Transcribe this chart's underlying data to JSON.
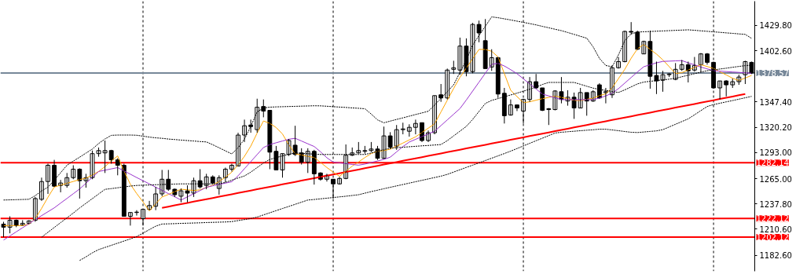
{
  "chart_data": {
    "type": "candlestick",
    "categories": [
      null,
      null,
      null,
      null,
      null,
      null,
      null,
      null,
      null,
      null,
      null,
      null,
      null,
      null,
      null,
      null,
      null,
      null,
      null,
      null,
      null,
      null,
      null,
      null,
      null,
      null,
      null,
      null,
      null,
      null,
      null,
      null,
      null,
      null,
      null,
      null,
      null,
      null,
      null,
      null,
      null,
      null,
      null,
      null,
      null,
      null,
      null,
      null,
      null,
      null,
      null,
      null,
      null,
      null,
      null,
      null,
      null,
      null,
      null,
      null,
      null,
      null,
      null,
      null,
      null,
      null,
      null,
      null,
      null,
      null,
      null,
      null,
      null,
      null,
      null,
      null,
      null,
      null,
      null,
      null,
      null,
      null,
      null,
      null,
      null,
      null,
      null,
      null,
      null,
      null,
      null,
      null,
      null,
      null,
      null,
      null,
      null,
      null,
      null,
      null,
      null,
      null,
      null,
      null,
      null,
      null,
      null,
      null,
      null,
      null,
      null,
      null,
      null,
      null,
      null,
      null,
      null,
      null,
      null
    ],
    "ohlc": [
      [
        1216.1,
        1218.6,
        1202.0,
        1212.8
      ],
      [
        1212.8,
        1224.5,
        1206.2,
        1220.3
      ],
      [
        1220.3,
        1221.1,
        1212.8,
        1214.5
      ],
      [
        1215.3,
        1220.3,
        1214.5,
        1217.0
      ],
      [
        1217.0,
        1220.3,
        1216.0,
        1219.5
      ],
      [
        1220.3,
        1245.3,
        1218.6,
        1243.6
      ],
      [
        1242.8,
        1266.1,
        1241.1,
        1261.9
      ],
      [
        1261.9,
        1281.1,
        1248.6,
        1279.4
      ],
      [
        1279.4,
        1285.2,
        1256.1,
        1256.9
      ],
      [
        1257.7,
        1263.6,
        1250.3,
        1260.3
      ],
      [
        1257.7,
        1271.1,
        1255.3,
        1266.1
      ],
      [
        1266.1,
        1279.4,
        1264.4,
        1275.2
      ],
      [
        1275.2,
        1276.1,
        1243.6,
        1262.8
      ],
      [
        1262.8,
        1270.2,
        1255.3,
        1266.1
      ],
      [
        1266.1,
        1295.2,
        1264.4,
        1291.9
      ],
      [
        1291.9,
        1298.5,
        1288.6,
        1295.2
      ],
      [
        1292.7,
        1306.0,
        1271.1,
        1295.2
      ],
      [
        1295.2,
        1296.0,
        1281.1,
        1285.2
      ],
      [
        1285.2,
        1286.9,
        1268.6,
        1279.4
      ],
      [
        1279.4,
        1281.1,
        1224.5,
        1224.5
      ],
      [
        1224.5,
        1228.6,
        1214.5,
        1228.6
      ],
      [
        1228.6,
        1231.1,
        1225.3,
        1229.0
      ],
      [
        1222.0,
        1232.0,
        1214.5,
        1232.0
      ],
      [
        1232.0,
        1241.1,
        1231.1,
        1236.1
      ],
      [
        1235.3,
        1256.1,
        1231.1,
        1248.6
      ],
      [
        1248.6,
        1274.4,
        1246.1,
        1264.4
      ],
      [
        1264.4,
        1274.4,
        1251.9,
        1253.6
      ],
      [
        1253.6,
        1254.4,
        1245.3,
        1247.8
      ],
      [
        1246.1,
        1254.4,
        1239.5,
        1251.9
      ],
      [
        1251.9,
        1257.8,
        1239.5,
        1249.4
      ],
      [
        1249.4,
        1266.1,
        1245.3,
        1262.8
      ],
      [
        1262.8,
        1275.2,
        1254.4,
        1256.1
      ],
      [
        1257.7,
        1270.2,
        1253.6,
        1266.9
      ],
      [
        1266.9,
        1268.6,
        1259.2,
        1260.3
      ],
      [
        1254.4,
        1268.6,
        1247.8,
        1266.1
      ],
      [
        1266.1,
        1276.9,
        1261.1,
        1275.2
      ],
      [
        1275.2,
        1281.1,
        1272.7,
        1279.4
      ],
      [
        1278.6,
        1314.4,
        1278.6,
        1311.9
      ],
      [
        1311.9,
        1328.5,
        1304.4,
        1321.9
      ],
      [
        1322.7,
        1328.5,
        1314.4,
        1321.0
      ],
      [
        1317.7,
        1351.0,
        1314.4,
        1341.8
      ],
      [
        1342.6,
        1350.2,
        1331.0,
        1337.7
      ],
      [
        1338.5,
        1338.5,
        1275.2,
        1293.5
      ],
      [
        1294.4,
        1300.2,
        1274.4,
        1274.4
      ],
      [
        1274.4,
        1291.9,
        1266.1,
        1291.9
      ],
      [
        1291.0,
        1307.7,
        1289.4,
        1306.0
      ],
      [
        1301.0,
        1321.9,
        1289.4,
        1291.0
      ],
      [
        1292.7,
        1297.7,
        1280.2,
        1282.7
      ],
      [
        1282.7,
        1297.7,
        1271.1,
        1294.4
      ],
      [
        1294.4,
        1296.0,
        1258.6,
        1270.2
      ],
      [
        1271.1,
        1271.9,
        1262.8,
        1264.4
      ],
      [
        1264.4,
        1270.2,
        1261.9,
        1268.6
      ],
      [
        1264.4,
        1264.4,
        1243.6,
        1259.4
      ],
      [
        1259.4,
        1266.9,
        1258.6,
        1265.2
      ],
      [
        1265.2,
        1301.8,
        1264.4,
        1290.2
      ],
      [
        1290.2,
        1298.5,
        1289.4,
        1292.7
      ],
      [
        1292.7,
        1304.4,
        1291.9,
        1295.2
      ],
      [
        1294.4,
        1300.2,
        1291.9,
        1295.2
      ],
      [
        1295.2,
        1304.4,
        1293.5,
        1296.9
      ],
      [
        1296.9,
        1300.2,
        1285.2,
        1286.9
      ],
      [
        1286.9,
        1321.0,
        1286.1,
        1311.0
      ],
      [
        1311.0,
        1315.0,
        1297.0,
        1299.0
      ],
      [
        1300.0,
        1322.7,
        1296.0,
        1317.7
      ],
      [
        1317.7,
        1325.2,
        1312.7,
        1318.5
      ],
      [
        1316.0,
        1323.5,
        1310.2,
        1320.2
      ],
      [
        1320.2,
        1328.5,
        1312.7,
        1324.4
      ],
      [
        1325.2,
        1325.2,
        1304.4,
        1306.0
      ],
      [
        1306.0,
        1316.8,
        1304.4,
        1314.4
      ],
      [
        1314.4,
        1354.3,
        1312.7,
        1354.3
      ],
      [
        1355.2,
        1366.8,
        1347.6,
        1351.8
      ],
      [
        1351.8,
        1383.4,
        1350.2,
        1381.8
      ],
      [
        1382.6,
        1391.8,
        1377.6,
        1384.3
      ],
      [
        1381.8,
        1416.7,
        1376.8,
        1407.6
      ],
      [
        1407.6,
        1415.9,
        1375.1,
        1380.1
      ],
      [
        1380.1,
        1432.5,
        1378.4,
        1430.9
      ],
      [
        1430.9,
        1435.0,
        1411.7,
        1421.7
      ],
      [
        1413.4,
        1436.7,
        1383.4,
        1383.4
      ],
      [
        1385.1,
        1404.2,
        1380.9,
        1395.1
      ],
      [
        1395.1,
        1395.9,
        1351.8,
        1356.0
      ],
      [
        1356.8,
        1362.6,
        1324.3,
        1332.7
      ],
      [
        1333.5,
        1350.2,
        1332.7,
        1344.3
      ],
      [
        1344.3,
        1344.3,
        1337.7,
        1341.0
      ],
      [
        1337.7,
        1351.0,
        1324.3,
        1350.2
      ],
      [
        1350.2,
        1374.3,
        1347.6,
        1369.3
      ],
      [
        1369.3,
        1377.6,
        1361.8,
        1362.6
      ],
      [
        1362.6,
        1362.6,
        1337.7,
        1338.5
      ],
      [
        1340.2,
        1341.0,
        1322.7,
        1339.3
      ],
      [
        1339.3,
        1360.1,
        1338.5,
        1359.3
      ],
      [
        1358.5,
        1374.3,
        1346.0,
        1350.2
      ],
      [
        1348.5,
        1360.1,
        1343.5,
        1352.6
      ],
      [
        1352.6,
        1357.6,
        1329.3,
        1341.0
      ],
      [
        1341.0,
        1362.6,
        1341.0,
        1357.6
      ],
      [
        1357.6,
        1357.6,
        1332.7,
        1348.5
      ],
      [
        1348.5,
        1360.1,
        1347.6,
        1358.5
      ],
      [
        1365.9,
        1367.6,
        1351.0,
        1351.8
      ],
      [
        1357.6,
        1362.6,
        1346.0,
        1358.5
      ],
      [
        1355.2,
        1386.8,
        1351.8,
        1384.3
      ],
      [
        1384.3,
        1395.9,
        1383.4,
        1390.9
      ],
      [
        1390.9,
        1424.2,
        1390.1,
        1423.4
      ],
      [
        1423.4,
        1433.4,
        1420.0,
        1422.6
      ],
      [
        1422.6,
        1424.2,
        1403.4,
        1404.2
      ],
      [
        1399.2,
        1413.4,
        1399.2,
        1412.6
      ],
      [
        1412.6,
        1424.2,
        1361.8,
        1375.1
      ],
      [
        1376.0,
        1390.9,
        1356.0,
        1370.1
      ],
      [
        1370.9,
        1380.9,
        1358.5,
        1376.8
      ],
      [
        1376.8,
        1378.4,
        1374.3,
        1377.6
      ],
      [
        1371.8,
        1389.3,
        1370.9,
        1382.6
      ],
      [
        1382.6,
        1392.6,
        1380.9,
        1387.6
      ],
      [
        1387.6,
        1390.9,
        1368.5,
        1380.9
      ],
      [
        1381.8,
        1395.9,
        1380.1,
        1386.8
      ],
      [
        1387.6,
        1400.1,
        1379.3,
        1399.2
      ],
      [
        1399.2,
        1400.1,
        1387.6,
        1390.1
      ],
      [
        1390.1,
        1390.9,
        1361.8,
        1362.6
      ],
      [
        1362.6,
        1370.1,
        1350.2,
        1370.1
      ],
      [
        1370.1,
        1370.9,
        1353.5,
        1365.9
      ],
      [
        1365.9,
        1372.6,
        1362.6,
        1369.3
      ],
      [
        1369.3,
        1376.8,
        1365.9,
        1374.3
      ],
      [
        1376.8,
        1391.8,
        1366.8,
        1390.9
      ],
      [
        1390.1,
        1390.9,
        1377.6,
        1378.6
      ]
    ],
    "series": [
      {
        "type": "line",
        "color": "#ff0000",
        "values": [
          null,
          null,
          null,
          null,
          null,
          null,
          null,
          null,
          null,
          null,
          null,
          null,
          null,
          null,
          null,
          null,
          null,
          null,
          null,
          null,
          null,
          null,
          null,
          null,
          null,
          1233.6,
          1234.9,
          1236.3,
          1237.6,
          1238.9,
          1240.3,
          1241.6,
          1242.9,
          1244.2,
          1245.6,
          1246.9,
          1248.2,
          1249.6,
          1250.9,
          1252.2,
          1253.6,
          1254.9,
          1256.2,
          1257.5,
          1258.9,
          1260.2,
          1261.5,
          1262.9,
          1264.2,
          1265.5,
          1266.9,
          1268.2,
          1269.5,
          1270.8,
          1272.2,
          1273.5,
          1274.8,
          1276.2,
          1277.5,
          1278.8,
          1280.2,
          1281.5,
          1282.8,
          1284.2,
          1285.5,
          1286.8,
          1288.1,
          1289.5,
          1290.8,
          1292.1,
          1293.5,
          1294.8,
          1296.1,
          1297.5,
          1298.8,
          1300.1,
          1301.4,
          1302.8,
          1304.1,
          1305.4,
          1306.8,
          1308.1,
          1309.4,
          1310.8,
          1312.1,
          1313.4,
          1314.7,
          1316.1,
          1317.4,
          1318.7,
          1320.1,
          1321.4,
          1322.7,
          1324.1,
          1325.4,
          1326.7,
          1328.1,
          1329.4,
          1330.7,
          1332.0,
          1333.4,
          1334.7,
          1336.0,
          1337.4,
          1338.7,
          1340.0,
          1341.4,
          1342.7,
          1344.0,
          1345.3,
          1346.7,
          1348.0,
          1349.3,
          1350.7,
          1352.0,
          1353.3,
          1354.7,
          1356.0,
          null
        ]
      },
      {
        "type": "line",
        "color": "#ffa500",
        "values": [
          1214.5,
          1214.5,
          1214.5,
          1214.5,
          1216,
          1222,
          1233,
          1245,
          1256,
          1258,
          1260,
          1262,
          1264,
          1265.5,
          1269,
          1272.7,
          1278,
          1284,
          1289.4,
          1273,
          1259,
          1249,
          1240,
          1230.3,
          1238,
          1245.3,
          1248,
          1251,
          1253.6,
          1253,
          1252.3,
          1253,
          1255.5,
          1258,
          1262,
          1266.5,
          1272,
          1280,
          1289,
          1300,
          1314,
          1327,
          1324.5,
          1320,
          1313,
          1301.5,
          1291.7,
          1290.5,
          1289,
          1287.8,
          1282.5,
          1277,
          1272,
          1267.5,
          1273,
          1278.5,
          1283,
          1287.7,
          1292,
          1294.5,
          1295.2,
          1296.7,
          1300,
          1303.3,
          1306.7,
          1310,
          1314.7,
          1319.3,
          1324,
          1336.7,
          1349.4,
          1362,
          1374,
          1384,
          1394,
          1404,
          1404,
          1402,
          1396,
          1378,
          1360,
          1353.3,
          1346.7,
          1347.7,
          1349.4,
          1351,
          1352.4,
          1353.8,
          1352.5,
          1351,
          1349.2,
          1349,
          1350.4,
          1351.6,
          1354.3,
          1356.3,
          1362.6,
          1372.6,
          1382.6,
          1394.5,
          1404.7,
          1409.4,
          1404,
          1399,
          1392.8,
          1385.5,
          1378,
          1379,
          1381.9,
          1384.8,
          1387.6,
          1385.6,
          1383.6,
          1380,
          1376.6,
          1373,
          1370.6,
          1373.3,
          1376
        ]
      },
      {
        "type": "line",
        "color": "#9933cc",
        "values": [
          1199,
          1203.4,
          1207.8,
          1212.2,
          1216.6,
          1221,
          1225.2,
          1229.4,
          1233.6,
          1238.7,
          1243.7,
          1248.8,
          1253.9,
          1260,
          1266.4,
          1272.7,
          1274.1,
          1275.5,
          1276.9,
          1273.3,
          1269.8,
          1266.2,
          1262.8,
          1259.4,
          1255.8,
          1252.4,
          1248.9,
          1245.5,
          1242,
          1245.4,
          1248.8,
          1252.2,
          1255.7,
          1257.3,
          1258.8,
          1260.2,
          1261.7,
          1268.1,
          1275.7,
          1283.3,
          1290.9,
          1298.5,
          1301.6,
          1303.6,
          1305.5,
          1307.4,
          1308.4,
          1305.5,
          1302.5,
          1299.6,
          1293.9,
          1287.5,
          1282.8,
          1282,
          1281.2,
          1280.3,
          1279.5,
          1280.7,
          1282.4,
          1284,
          1285.7,
          1288.1,
          1293.8,
          1299.5,
          1304.4,
          1307.3,
          1310.2,
          1313.1,
          1316,
          1322.1,
          1328.2,
          1334.3,
          1340.4,
          1349.6,
          1359.2,
          1368.8,
          1378.4,
          1388,
          1389,
          1386.2,
          1382.2,
          1377.9,
          1372.4,
          1366.9,
          1361.5,
          1356,
          1354,
          1352,
          1350,
          1350,
          1350,
          1350,
          1350,
          1350,
          1351.7,
          1354,
          1357,
          1361.8,
          1367.8,
          1373.8,
          1379.8,
          1385.4,
          1387.5,
          1389.6,
          1391.1,
          1391.4,
          1391.7,
          1392,
          1389.6,
          1387.4,
          1385,
          1383.1,
          1381.2,
          1380.6,
          1380.2,
          1379.7,
          1379.3,
          1378.8,
          1378.4
        ]
      },
      {
        "type": "line",
        "color": "#000000",
        "line_style": "dashed",
        "values": [
          1242,
          1242.2,
          1242.4,
          1242.6,
          1242.8,
          1246.7,
          1251.8,
          1255.8,
          1263.3,
          1271.4,
          1279.4,
          1283.9,
          1288.1,
          1292.5,
          1296.8,
          1302.8,
          1307.7,
          1311.6,
          1311.9,
          1311.9,
          1311.9,
          1311.7,
          1310.7,
          1309.7,
          1308.9,
          1308.4,
          1307.6,
          1307.1,
          1306.5,
          1306,
          1305.5,
          1304.9,
          1304.5,
          1301.5,
          1298.2,
          1294.9,
          1291.6,
          1298.3,
          1307.5,
          1321.2,
          1336.8,
          1341,
          1341.9,
          1342.2,
          1342.4,
          1342.6,
          1342.8,
          1343,
          1343.2,
          1343.4,
          1343.3,
          1342.9,
          1342.4,
          1342,
          1341.6,
          1341.1,
          1340.7,
          1340.2,
          1334.5,
          1328.2,
          1325.1,
          1326.9,
          1328.7,
          1330.4,
          1332.2,
          1334,
          1335.7,
          1337.5,
          1344.2,
          1351.4,
          1358.5,
          1365.9,
          1379.4,
          1392.6,
          1408.8,
          1418.9,
          1428.9,
          1439,
          1438.1,
          1436.9,
          1435.7,
          1434.4,
          1433.1,
          1431.8,
          1430.4,
          1428.8,
          1427.3,
          1425.7,
          1424.2,
          1422.2,
          1420.2,
          1418.1,
          1416.1,
          1406.8,
          1394.4,
          1386.7,
          1385.4,
          1398.1,
          1413.6,
          1420.7,
          1422.7,
          1423,
          1423.3,
          1423.6,
          1423.9,
          1424.2,
          1424.5,
          1424.8,
          1425.1,
          1424.6,
          1424,
          1423.5,
          1422.9,
          1422.4,
          1421.8,
          1421.3,
          1420.7,
          1420.2,
          1415.9
        ]
      },
      {
        "type": "line",
        "color": "#000000",
        "line_style": "dashed",
        "values": [
          null,
          null,
          null,
          null,
          null,
          null,
          1202,
          1207.3,
          1212.5,
          1217.7,
          1222.8,
          1228,
          1233.5,
          1238.5,
          1243.5,
          1248.5,
          1253.5,
          1254.3,
          1255.2,
          1256.1,
          1257,
          1257.7,
          1258,
          1258.2,
          1258.5,
          1258.7,
          1258.9,
          1259.2,
          1259.4,
          1259.4,
          1259.4,
          1259.4,
          1259.4,
          1259.4,
          1259.4,
          1261,
          1263.4,
          1265.7,
          1267.9,
          1272,
          1276.9,
          1281.8,
          1285.7,
          1287.6,
          1289.5,
          1291.2,
          1292.6,
          1292.3,
          1291.8,
          1291.4,
          1291,
          1291,
          1291,
          1291,
          1291,
          1291,
          1291,
          1291,
          1292.6,
          1294.4,
          1296.2,
          1297.8,
          1298.3,
          1298.8,
          1299.3,
          1299.8,
          1300.3,
          1300.7,
          1301.2,
          1301.7,
          1305.9,
          1311,
          1316.1,
          1321.2,
          1328.7,
          1337.3,
          1345.9,
          1349.2,
          1351.1,
          1353.1,
          1355,
          1357,
          1359.1,
          1361.2,
          1363.4,
          1366.3,
          1368.5,
          1368.5,
          1368.5,
          1368.5,
          1368.5,
          1366.5,
          1364.4,
          1362.4,
          1360.9,
          1359.9,
          1358.8,
          1357.7,
          1360.5,
          1363.7,
          1366.9,
          1368.9,
          1369.7,
          1370.5,
          1371.2,
          1372,
          1372.9,
          1374.6,
          1376.3,
          1377.9,
          1379.6,
          1381.1,
          1382,
          1382.9,
          1383.8,
          1384.8,
          1385.7,
          1386.6,
          1387
        ]
      },
      {
        "type": "line",
        "color": "#000000",
        "line_style": "dashed",
        "values": [
          null,
          null,
          null,
          null,
          null,
          null,
          null,
          null,
          null,
          null,
          null,
          null,
          1177,
          1180.9,
          1185.2,
          1188.7,
          1191,
          1193.3,
          1195.6,
          1197.9,
          1200.2,
          1202.7,
          1206.4,
          1210.2,
          1213.9,
          1216.2,
          1216.4,
          1216.6,
          1216.9,
          1217.1,
          1217.3,
          1217.5,
          1217.8,
          1218,
          1218.2,
          1218.4,
          1218.8,
          1219.9,
          1221,
          1222.1,
          1223.7,
          1226,
          1228.3,
          1230.6,
          1232.9,
          1235.1,
          1237.4,
          1239.7,
          1242,
          1242.6,
          1243.3,
          1244,
          1244.7,
          1245.4,
          1246.1,
          1246.9,
          1247.7,
          1249.4,
          1251.1,
          1252.6,
          1254.2,
          1255.7,
          1257.2,
          1258.7,
          1260.2,
          1261.7,
          1263.2,
          1264.7,
          1266.2,
          1267.7,
          1269.6,
          1272.1,
          1274.6,
          1277.1,
          1279.5,
          1282,
          1284.5,
          1287,
          1289.5,
          1292,
          1294.6,
          1297.4,
          1300.2,
          1303,
          1305.8,
          1308.5,
          1311.3,
          1314.1,
          1314.9,
          1315.5,
          1316,
          1316.6,
          1317.1,
          1317.6,
          1318.2,
          1318.2,
          1317.4,
          1316.6,
          1315.7,
          1314.9,
          1314.6,
          1315.2,
          1315.8,
          1316.4,
          1317.7,
          1320.6,
          1323.5,
          1326.4,
          1329.3,
          1333.7,
          1338.2,
          1342.6,
          1344.7,
          1346.1,
          1347.6,
          1349,
          1350.5,
          1352,
          1353.5
        ]
      }
    ],
    "ylim": [
      1165.4,
      1455.9
    ],
    "yticks": [
      {
        "value": 1182.6,
        "label": "1182.60"
      },
      {
        "value": 1210.6,
        "label": "1210.60"
      },
      {
        "value": 1237.8,
        "label": "1237.80"
      },
      {
        "value": 1265.0,
        "label": "1265.00"
      },
      {
        "value": 1293.0,
        "label": "1293.00"
      },
      {
        "value": 1320.2,
        "label": "1320.20"
      },
      {
        "value": 1347.4,
        "label": "1347.40"
      },
      {
        "value": 1402.6,
        "label": "1402.60"
      },
      {
        "value": 1429.8,
        "label": "1429.80"
      }
    ],
    "ref_lines": [
      {
        "axis": "y",
        "value": 1378.57,
        "label": "1378.57",
        "color": "#778899"
      },
      {
        "axis": "y",
        "value": 1282.14,
        "label": "1282.14",
        "color": "#ff0000"
      },
      {
        "axis": "y",
        "value": 1222.12,
        "label": "1222.12",
        "color": "#ff0000"
      },
      {
        "axis": "y",
        "value": 1202.12,
        "label": "1202.12",
        "color": "#ff0000"
      }
    ],
    "tick_labels": "y",
    "grid": "x"
  }
}
